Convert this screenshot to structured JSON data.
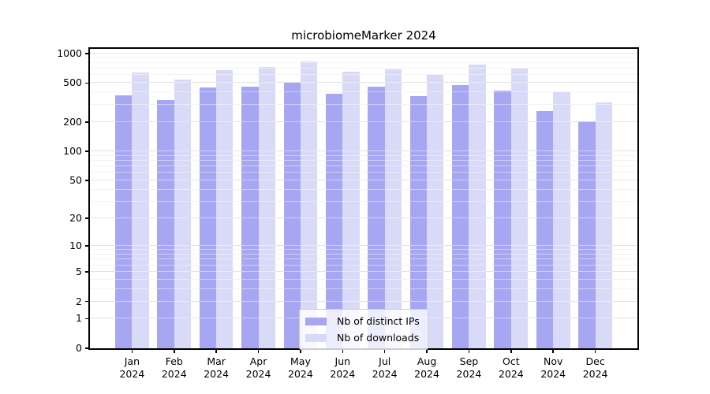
{
  "figure": {
    "background": "#ffffff"
  },
  "chart_data": {
    "type": "bar",
    "title": "microbiomeMarker 2024",
    "categories": [
      "Jan",
      "Feb",
      "Mar",
      "Apr",
      "May",
      "Jun",
      "Jul",
      "Aug",
      "Sep",
      "Oct",
      "Nov",
      "Dec"
    ],
    "year_label": "2024",
    "series": [
      {
        "name": "Nb of distinct IPs",
        "color": "#a6a6f2",
        "values": [
          373,
          335,
          450,
          462,
          500,
          388,
          456,
          367,
          477,
          420,
          257,
          204
        ]
      },
      {
        "name": "Nb of downloads",
        "color": "#d9d9f8",
        "values": [
          635,
          540,
          676,
          735,
          828,
          656,
          691,
          605,
          775,
          706,
          405,
          318
        ]
      }
    ],
    "xlabel": "",
    "ylabel": "",
    "yscale": "log1p",
    "ylim": [
      0,
      1114
    ],
    "yticks": [
      0,
      1,
      2,
      5,
      10,
      20,
      50,
      100,
      200,
      500,
      1000
    ],
    "minor_gridlines": [
      3,
      4,
      6,
      7,
      8,
      9,
      30,
      40,
      60,
      70,
      80,
      90,
      300,
      400,
      600,
      700,
      800,
      900
    ],
    "grid": true,
    "grid_major_color": "#cdcdcd",
    "grid_minor_color": "#e9e9e9",
    "axis_color": "#000000",
    "legend_position": "lower center",
    "bar_group_width_fraction": 0.8
  }
}
